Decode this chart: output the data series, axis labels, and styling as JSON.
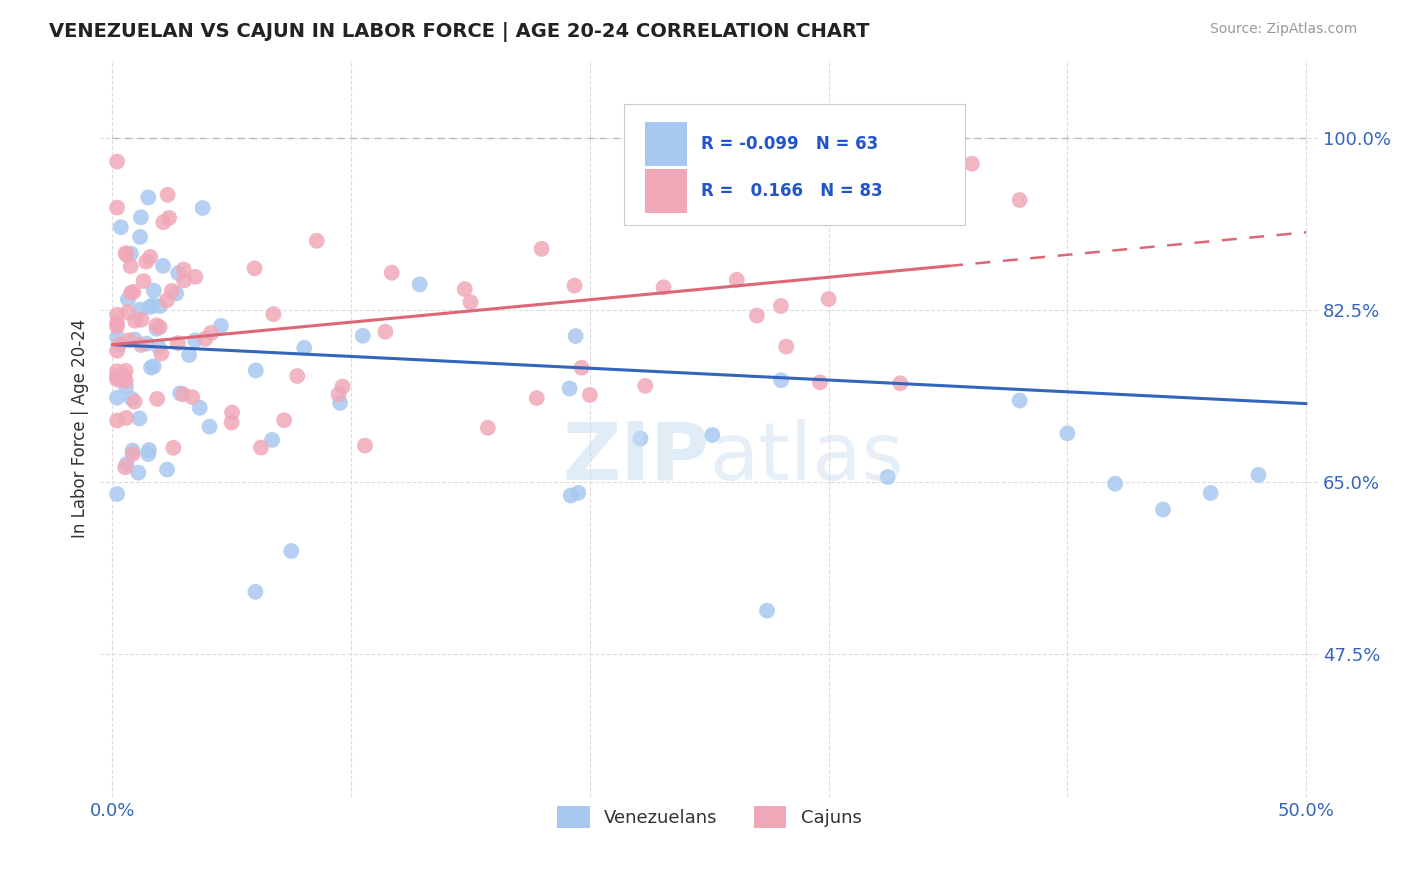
{
  "title": "VENEZUELAN VS CAJUN IN LABOR FORCE | AGE 20-24 CORRELATION CHART",
  "source_text": "Source: ZipAtlas.com",
  "ylabel": "In Labor Force | Age 20-24",
  "xlim": [
    -0.005,
    0.505
  ],
  "ylim": [
    0.33,
    1.08
  ],
  "xtick_positions": [
    0.0,
    0.1,
    0.2,
    0.3,
    0.4,
    0.5
  ],
  "xticklabels": [
    "0.0%",
    "",
    "",
    "",
    "",
    "50.0%"
  ],
  "ytick_positions": [
    0.475,
    0.65,
    0.825,
    1.0
  ],
  "ytick_labels": [
    "47.5%",
    "65.0%",
    "82.5%",
    "100.0%"
  ],
  "venezuelan_color": "#a8c8f0",
  "cajun_color": "#f0a8b8",
  "trend_blue_color": "#3366bb",
  "trend_pink_color": "#dd6677",
  "background_color": "#ffffff",
  "watermark_zip": "ZIP",
  "watermark_atlas": "atlas",
  "legend_text": "R = -0.099  N = 63\nR =   0.166  N = 83"
}
